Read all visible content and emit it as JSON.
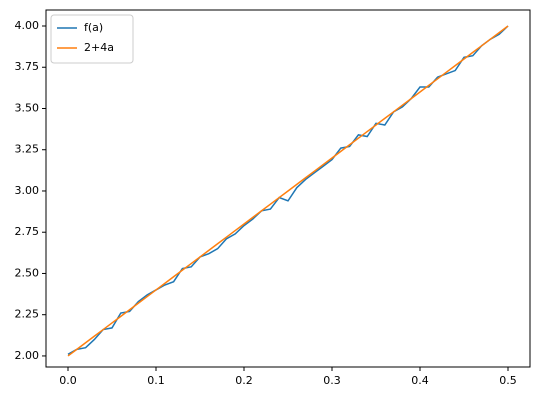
{
  "chart_data": {
    "type": "line",
    "x": [
      0,
      0.01,
      0.02,
      0.03,
      0.04,
      0.05,
      0.06,
      0.07,
      0.08,
      0.09,
      0.1,
      0.11,
      0.12,
      0.13,
      0.14,
      0.15,
      0.16,
      0.17,
      0.18,
      0.19,
      0.2,
      0.21,
      0.22,
      0.23,
      0.24,
      0.25,
      0.26,
      0.27,
      0.28,
      0.29,
      0.3,
      0.31,
      0.32,
      0.33,
      0.34,
      0.35,
      0.36,
      0.37,
      0.38,
      0.39,
      0.4,
      0.41,
      0.42,
      0.43,
      0.44,
      0.45,
      0.46,
      0.47,
      0.48,
      0.49,
      0.5
    ],
    "series": [
      {
        "name": "f(a)",
        "color": "#1f77b4",
        "values": [
          2.01,
          2.04,
          2.05,
          2.1,
          2.16,
          2.17,
          2.26,
          2.27,
          2.33,
          2.37,
          2.4,
          2.43,
          2.45,
          2.53,
          2.54,
          2.6,
          2.62,
          2.65,
          2.71,
          2.74,
          2.79,
          2.83,
          2.88,
          2.89,
          2.96,
          2.94,
          3.02,
          3.07,
          3.11,
          3.15,
          3.19,
          3.26,
          3.27,
          3.34,
          3.33,
          3.41,
          3.4,
          3.48,
          3.51,
          3.56,
          3.63,
          3.63,
          3.69,
          3.71,
          3.73,
          3.81,
          3.82,
          3.88,
          3.92,
          3.95,
          4.0
        ]
      },
      {
        "name": "2+4a",
        "color": "#ff7f0e",
        "values": [
          2.0,
          2.04,
          2.08,
          2.12,
          2.16,
          2.2,
          2.24,
          2.28,
          2.32,
          2.36,
          2.4,
          2.44,
          2.48,
          2.52,
          2.56,
          2.6,
          2.64,
          2.68,
          2.72,
          2.76,
          2.8,
          2.84,
          2.88,
          2.92,
          2.96,
          3.0,
          3.04,
          3.08,
          3.12,
          3.16,
          3.2,
          3.24,
          3.28,
          3.32,
          3.36,
          3.4,
          3.44,
          3.48,
          3.52,
          3.56,
          3.6,
          3.64,
          3.68,
          3.72,
          3.76,
          3.8,
          3.84,
          3.88,
          3.92,
          3.96,
          4.0
        ]
      }
    ],
    "xlim": [
      -0.025,
      0.525
    ],
    "xticks": [
      {
        "value": 0,
        "label": "0.0"
      },
      {
        "value": 0.1,
        "label": "0.1"
      },
      {
        "value": 0.2,
        "label": "0.2"
      },
      {
        "value": 0.3,
        "label": "0.3"
      },
      {
        "value": 0.4,
        "label": "0.4"
      },
      {
        "value": 0.5,
        "label": "0.5"
      }
    ],
    "ylim": [
      1.933,
      4.097
    ],
    "yticks": [
      {
        "value": 2,
        "label": "2.00"
      },
      {
        "value": 2.25,
        "label": "2.25"
      },
      {
        "value": 2.5,
        "label": "2.50"
      },
      {
        "value": 2.75,
        "label": "2.75"
      },
      {
        "value": 3,
        "label": "3.00"
      },
      {
        "value": 3.25,
        "label": "3.25"
      },
      {
        "value": 3.5,
        "label": "3.50"
      },
      {
        "value": 3.75,
        "label": "3.75"
      },
      {
        "value": 4,
        "label": "4.00"
      }
    ],
    "legend": "upper left"
  }
}
